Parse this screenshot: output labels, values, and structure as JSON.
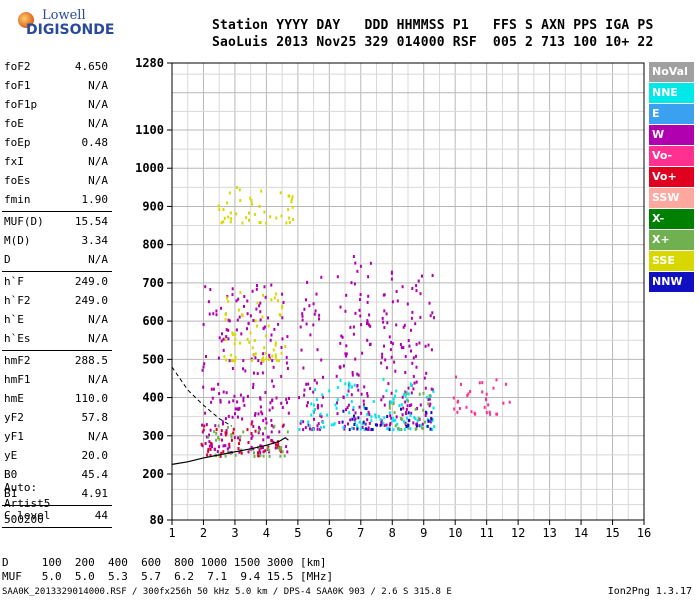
{
  "logo": {
    "line1": "Lowell",
    "line2": "DIGISONDE"
  },
  "header": {
    "row1": "Station YYYY DAY   DDD HHMMSS P1   FFS S AXN PPS IGA PS",
    "row2": "SaoLuis 2013 Nov25 329 014000 RSF  005 2 713 100 10+ 22"
  },
  "params": [
    {
      "name": "foF2",
      "value": "4.650"
    },
    {
      "name": "foF1",
      "value": "N/A"
    },
    {
      "name": "foF1p",
      "value": "N/A"
    },
    {
      "name": "foE",
      "value": "N/A"
    },
    {
      "name": "foEp",
      "value": "0.48"
    },
    {
      "name": "fxI",
      "value": "N/A"
    },
    {
      "name": "foEs",
      "value": "N/A"
    },
    {
      "name": "fmin",
      "value": "1.90"
    },
    {
      "name": "MUF(D)",
      "value": "15.54"
    },
    {
      "name": "M(D)",
      "value": "3.34"
    },
    {
      "name": "D",
      "value": "N/A"
    },
    {
      "name": "h`F",
      "value": "249.0"
    },
    {
      "name": "h`F2",
      "value": "249.0"
    },
    {
      "name": "h`E",
      "value": "N/A"
    },
    {
      "name": "h`Es",
      "value": "N/A"
    },
    {
      "name": "hmF2",
      "value": "288.5"
    },
    {
      "name": "hmF1",
      "value": "N/A"
    },
    {
      "name": "hmE",
      "value": "110.0"
    },
    {
      "name": "yF2",
      "value": "57.8"
    },
    {
      "name": "yF1",
      "value": "N/A"
    },
    {
      "name": "yE",
      "value": "20.0"
    },
    {
      "name": "B0",
      "value": "45.4"
    },
    {
      "name": "B1",
      "value": "4.91"
    },
    {
      "name": "C-level",
      "value": "44"
    }
  ],
  "scaling": {
    "line1": "Auto:",
    "line2": "Artist5",
    "line3": "500200"
  },
  "legend": [
    {
      "label": "NoVal",
      "color": "#a0a0a0"
    },
    {
      "label": "NNE",
      "color": "#00e8e8"
    },
    {
      "label": "E",
      "color": "#3aa0f0"
    },
    {
      "label": "W",
      "color": "#b000b0"
    },
    {
      "label": "Vo-",
      "color": "#ff3090"
    },
    {
      "label": "Vo+",
      "color": "#e00020"
    },
    {
      "label": "SSW",
      "color": "#ffa8a0"
    },
    {
      "label": "X-",
      "color": "#008000"
    },
    {
      "label": "X+",
      "color": "#70b050"
    },
    {
      "label": "SSE",
      "color": "#d8d800"
    },
    {
      "label": "NNW",
      "color": "#1010c0"
    }
  ],
  "footer": {
    "d_row": "D     100  200  400  600  800 1000 1500 3000 [km]",
    "muf_row": "MUF   5.0  5.0  5.3  5.7  6.2  7.1  9.4 15.5 [MHz]",
    "file_row": "SAA0K_2013329014000.RSF / 300fx256h 50 kHz 5.0 km / DPS-4 SAA0K 903 / 2.6 S 315.8 E",
    "signature": "Ion2Png 1.3.17"
  },
  "chart_data": {
    "type": "scatter",
    "xlabel": "",
    "ylabel": "",
    "x_ticks": [
      "1",
      "2",
      "3",
      "4",
      "5",
      "6",
      "7",
      "8",
      "9",
      "10",
      "11",
      "12",
      "13",
      "14",
      "15",
      "16"
    ],
    "xlim": [
      1,
      16
    ],
    "y_ticks": [
      "80",
      "200",
      "300",
      "400",
      "500",
      "600",
      "700",
      "800",
      "900",
      "1000",
      "1100",
      "1280"
    ],
    "y_scale": "piecewise: 80-200 compressed, 200-1100 linear, 1100-1280 top",
    "grid": true,
    "series": [
      {
        "name": "W",
        "clusters": [
          {
            "f": [
              1.9,
              4.7
            ],
            "h": [
              260,
              700
            ]
          },
          {
            "f": [
              5.0,
              5.8
            ],
            "h": [
              320,
              720
            ]
          },
          {
            "f": [
              6.2,
              7.3
            ],
            "h": [
              320,
              780
            ]
          },
          {
            "f": [
              7.6,
              9.3
            ],
            "h": [
              330,
              750
            ]
          }
        ]
      },
      {
        "name": "Vo+",
        "clusters": [
          {
            "f": [
              1.9,
              4.6
            ],
            "h": [
              250,
              340
            ]
          }
        ]
      },
      {
        "name": "SSE",
        "clusters": [
          {
            "f": [
              2.4,
              4.9
            ],
            "h": [
              860,
              960
            ]
          },
          {
            "f": [
              2.6,
              4.6
            ],
            "h": [
              500,
              680
            ]
          }
        ]
      },
      {
        "name": "NNE",
        "clusters": [
          {
            "f": [
              5.0,
              9.3
            ],
            "h": [
              320,
              460
            ]
          }
        ]
      },
      {
        "name": "X+",
        "clusters": [
          {
            "f": [
              2.0,
              4.7
            ],
            "h": [
              250,
              330
            ]
          },
          {
            "f": [
              7.8,
              9.2
            ],
            "h": [
              320,
              420
            ]
          }
        ]
      },
      {
        "name": "NNW",
        "clusters": [
          {
            "f": [
              6.3,
              9.3
            ],
            "h": [
              320,
              380
            ]
          }
        ]
      },
      {
        "name": "Vo-",
        "clusters": [
          {
            "f": [
              9.9,
              11.8
            ],
            "h": [
              360,
              460
            ]
          }
        ]
      }
    ],
    "trace": {
      "name": "profile",
      "points": [
        [
          1.0,
          225
        ],
        [
          1.5,
          232
        ],
        [
          2.0,
          242
        ],
        [
          2.5,
          250
        ],
        [
          3.0,
          258
        ],
        [
          3.5,
          266
        ],
        [
          4.0,
          275
        ],
        [
          4.4,
          285
        ],
        [
          4.6,
          295
        ],
        [
          4.7,
          288.5
        ]
      ]
    },
    "dashed_trace": {
      "points": [
        [
          1.0,
          480
        ],
        [
          1.5,
          420
        ],
        [
          2.0,
          380
        ],
        [
          2.5,
          345
        ],
        [
          2.9,
          325
        ]
      ]
    }
  }
}
